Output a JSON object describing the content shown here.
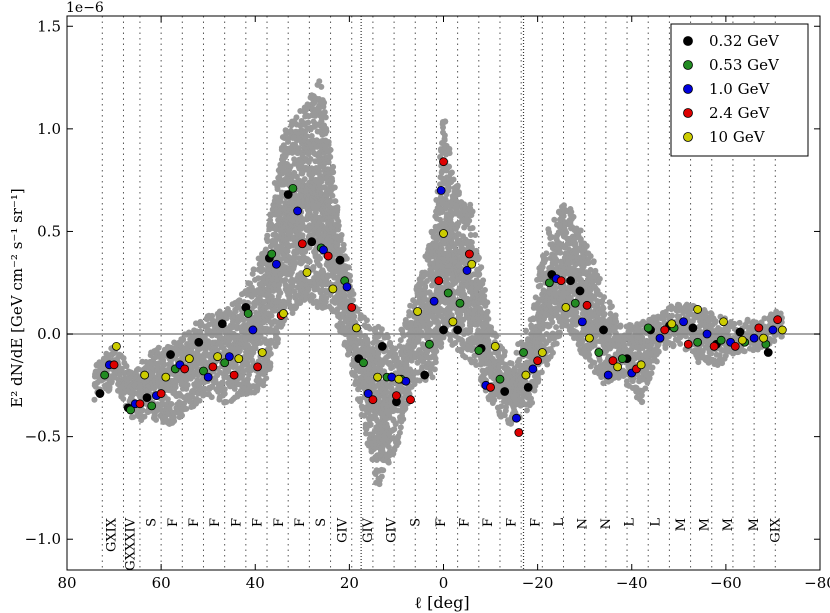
{
  "chart_data": {
    "type": "scatter",
    "title": "",
    "xlabel": "ℓ [deg]",
    "ylabel": "E² dN/dE [GeV cm⁻² s⁻¹ sr⁻¹]",
    "exponent_label": "1e−6",
    "xlim": [
      80,
      -80
    ],
    "ylim": [
      -1.15,
      1.55
    ],
    "x_ticks": [
      80,
      60,
      40,
      20,
      0,
      -20,
      -40,
      -60,
      -80
    ],
    "x_tick_labels": [
      "80",
      "60",
      "40",
      "20",
      "0",
      "−20",
      "−40",
      "−60",
      "−80"
    ],
    "y_ticks": [
      -1.0,
      -0.5,
      0.0,
      0.5,
      1.0,
      1.5
    ],
    "y_tick_labels": [
      "−1.0",
      "−0.5",
      "0.0",
      "0.5",
      "1.0",
      "1.5"
    ],
    "grid": false,
    "legend_position": "top-right",
    "zero_line": true,
    "vertical_dotted_lines_deg": [
      72.5,
      68,
      64.5,
      60,
      55.5,
      51,
      46.5,
      42,
      37.5,
      33,
      28.5,
      24,
      19.5,
      15,
      10.5,
      6,
      1.5,
      -3,
      -7.5,
      -12,
      -16.5,
      -21,
      -25.5,
      -30,
      -34.5,
      -39,
      -43.5,
      -48,
      -52.5,
      -57,
      -61.5,
      -66,
      -70.5
    ],
    "strong_dividers_deg": [
      17.5,
      -17
    ],
    "region_labels": [
      {
        "l": 70.5,
        "text": "GXIX"
      },
      {
        "l": 66.5,
        "text": "GXXXIV"
      },
      {
        "l": 62,
        "text": "S"
      },
      {
        "l": 57.5,
        "text": "F"
      },
      {
        "l": 53,
        "text": "F"
      },
      {
        "l": 48.5,
        "text": "F"
      },
      {
        "l": 44,
        "text": "F"
      },
      {
        "l": 39.5,
        "text": "F"
      },
      {
        "l": 35,
        "text": "F"
      },
      {
        "l": 30.5,
        "text": "F"
      },
      {
        "l": 26,
        "text": "S"
      },
      {
        "l": 21.5,
        "text": "GIV"
      },
      {
        "l": 16,
        "text": "GIV"
      },
      {
        "l": 11,
        "text": "GIV"
      },
      {
        "l": 6,
        "text": "S"
      },
      {
        "l": 0.5,
        "text": "F"
      },
      {
        "l": -4.5,
        "text": "F"
      },
      {
        "l": -9.5,
        "text": "F"
      },
      {
        "l": -14.5,
        "text": "F"
      },
      {
        "l": -19.5,
        "text": "F"
      },
      {
        "l": -24.5,
        "text": "L"
      },
      {
        "l": -29.5,
        "text": "N"
      },
      {
        "l": -34.5,
        "text": "N"
      },
      {
        "l": -39.5,
        "text": "L"
      },
      {
        "l": -45,
        "text": "L"
      },
      {
        "l": -50.5,
        "text": "M"
      },
      {
        "l": -55.5,
        "text": "M"
      },
      {
        "l": -60.5,
        "text": "M"
      },
      {
        "l": -66,
        "text": "M"
      },
      {
        "l": -70.5,
        "text": "GIX"
      }
    ],
    "series": [
      {
        "name": "0.32 GeV",
        "color": "#000000",
        "x": [
          73,
          67,
          63,
          58,
          52,
          47,
          42,
          37,
          33,
          28,
          22,
          18,
          13,
          10,
          4,
          0,
          -3,
          -8,
          -13,
          -18,
          -23,
          -27,
          -29,
          -34,
          -39,
          -44,
          -48,
          -53,
          -58,
          -63,
          -69
        ],
        "y": [
          -0.29,
          -0.36,
          -0.31,
          -0.1,
          -0.04,
          0.05,
          0.13,
          0.37,
          0.68,
          0.45,
          0.36,
          -0.12,
          -0.06,
          -0.33,
          -0.2,
          0.02,
          0.02,
          -0.07,
          -0.28,
          -0.26,
          0.29,
          0.26,
          0.21,
          0.02,
          -0.12,
          0.02,
          0.04,
          0.03,
          -0.05,
          0.01,
          -0.09
        ]
      },
      {
        "name": "0.53 GeV",
        "color": "#228B22",
        "x": [
          72,
          66.5,
          62,
          57,
          51,
          46.5,
          41.5,
          36.5,
          32,
          26,
          21,
          17,
          12,
          9,
          3,
          -1,
          -3.5,
          -7.5,
          -12,
          -17,
          -22.5,
          -28,
          -33,
          -38,
          -43.5,
          -49,
          -54,
          -59,
          -64,
          -68.5
        ],
        "y": [
          -0.2,
          -0.37,
          -0.35,
          -0.17,
          -0.18,
          -0.14,
          0.1,
          0.39,
          0.71,
          0.42,
          0.26,
          -0.14,
          -0.21,
          -0.22,
          -0.05,
          0.2,
          0.15,
          -0.08,
          -0.22,
          -0.09,
          0.25,
          0.15,
          -0.09,
          -0.12,
          0.03,
          0.03,
          -0.04,
          -0.03,
          -0.04,
          -0.05
        ]
      },
      {
        "name": "1.0 GeV",
        "color": "#0000DD",
        "x": [
          71,
          65.5,
          61,
          56,
          50,
          45.5,
          40.5,
          35.5,
          31,
          25.5,
          20.5,
          16,
          11,
          8,
          2,
          0.5,
          -5,
          -9,
          -15.5,
          -19,
          -24,
          -29.5,
          -35,
          -40,
          -46,
          -51,
          -56,
          -61,
          -66,
          -70
        ],
        "y": [
          -0.15,
          -0.34,
          -0.3,
          -0.15,
          -0.21,
          -0.11,
          0.02,
          0.34,
          0.6,
          0.41,
          0.23,
          -0.29,
          -0.21,
          -0.23,
          0.16,
          0.7,
          0.31,
          -0.25,
          -0.41,
          -0.17,
          0.27,
          0.06,
          -0.2,
          -0.19,
          -0.02,
          0.06,
          0.0,
          -0.04,
          -0.02,
          0.02
        ]
      },
      {
        "name": "2.4 GeV",
        "color": "#DD0000",
        "x": [
          70,
          64.5,
          60,
          55,
          49,
          44.5,
          39.5,
          34.5,
          30,
          24.5,
          19.5,
          15,
          10,
          7,
          1,
          0,
          -5.5,
          -10,
          -16,
          -20,
          -25,
          -30.5,
          -36,
          -41,
          -47,
          -52,
          -57.5,
          -62,
          -67,
          -71
        ],
        "y": [
          -0.15,
          -0.34,
          -0.29,
          -0.17,
          -0.16,
          -0.2,
          -0.16,
          0.09,
          0.44,
          0.38,
          0.13,
          -0.32,
          -0.3,
          -0.32,
          0.26,
          0.84,
          0.39,
          -0.26,
          -0.48,
          -0.13,
          0.26,
          0.14,
          -0.13,
          -0.17,
          0.02,
          -0.05,
          -0.06,
          -0.06,
          0.03,
          0.07
        ]
      },
      {
        "name": "10 GeV",
        "color": "#CCCC00",
        "x": [
          69.5,
          63.5,
          59,
          54,
          48,
          43.5,
          38.5,
          34,
          29,
          23.5,
          18.5,
          14,
          9.5,
          5.5,
          0,
          -2,
          -6,
          -11,
          -17.5,
          -21,
          -26,
          -31,
          -37,
          -42,
          -48.5,
          -54,
          -59.5,
          -63.5,
          -68,
          -72
        ],
        "y": [
          -0.06,
          -0.2,
          -0.21,
          -0.12,
          -0.11,
          -0.12,
          -0.09,
          0.1,
          0.3,
          0.22,
          0.03,
          -0.21,
          -0.22,
          0.11,
          0.49,
          0.06,
          0.34,
          -0.06,
          -0.2,
          -0.09,
          0.13,
          -0.02,
          -0.16,
          -0.15,
          0.05,
          0.12,
          0.06,
          -0.03,
          -0.02,
          0.02
        ]
      }
    ],
    "scatter_gray_profile": {
      "color": "#999999",
      "l": [
        74,
        70,
        66,
        62,
        58,
        54,
        50,
        46,
        42,
        38,
        34,
        30,
        26,
        22,
        18,
        14,
        10,
        6,
        2,
        0,
        -2,
        -6,
        -10,
        -14,
        -18,
        -22,
        -26,
        -30,
        -34,
        -38,
        -42,
        -46,
        -50,
        -54,
        -58,
        -62,
        -66,
        -70,
        -72
      ],
      "low": [
        -0.32,
        -0.26,
        -0.42,
        -0.42,
        -0.44,
        -0.37,
        -0.3,
        -0.34,
        -0.3,
        -0.27,
        0.05,
        0.16,
        0.12,
        0.02,
        -0.34,
        -0.75,
        -0.56,
        -0.24,
        -0.22,
        -0.02,
        -0.06,
        -0.14,
        -0.34,
        -0.46,
        -0.38,
        -0.15,
        0.04,
        -0.12,
        -0.24,
        -0.22,
        -0.34,
        -0.1,
        -0.05,
        -0.14,
        -0.16,
        -0.1,
        -0.08,
        -0.06,
        -0.04
      ],
      "high": [
        -0.14,
        -0.06,
        -0.18,
        -0.08,
        -0.04,
        0.02,
        0.1,
        0.12,
        0.23,
        0.44,
        0.98,
        1.1,
        1.25,
        0.55,
        0.1,
        0.05,
        -0.05,
        0.2,
        0.54,
        1.1,
        0.76,
        0.62,
        0.05,
        -0.12,
        0.05,
        0.5,
        0.66,
        0.46,
        0.22,
        0.04,
        0.06,
        0.1,
        0.16,
        0.14,
        0.1,
        0.06,
        0.08,
        0.1,
        0.12
      ]
    }
  }
}
